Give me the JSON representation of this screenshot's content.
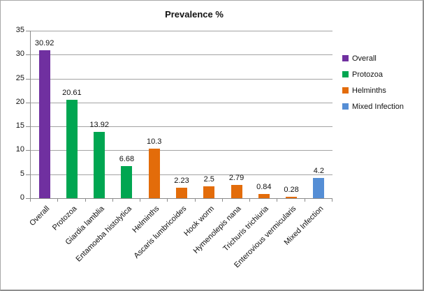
{
  "chart_data": {
    "type": "bar",
    "title": "Prevalence %",
    "categories": [
      "Overall",
      "Protozoa",
      "Giardia lamblia",
      "Entamoeba histolytica",
      "Helminths",
      "Ascaris lumbricoides",
      "Hook worm",
      "Hymenolepis nana",
      "Trichuris trichiuria",
      "Enterovious vermicularis",
      "Mixed Infection"
    ],
    "values": [
      30.92,
      20.61,
      13.92,
      6.68,
      10.3,
      2.23,
      2.5,
      2.79,
      0.84,
      0.28,
      4.2
    ],
    "value_labels": [
      "30.92",
      "20.61",
      "13.92",
      "6.68",
      "10.3",
      "2.23",
      "2.5",
      "2.79",
      "0.84",
      "0.28",
      "4.2"
    ],
    "groups": [
      "Overall",
      "Protozoa",
      "Protozoa",
      "Protozoa",
      "Helminths",
      "Helminths",
      "Helminths",
      "Helminths",
      "Helminths",
      "Helminths",
      "Mixed Infection"
    ],
    "group_colors": {
      "Overall": "#7030A0",
      "Protozoa": "#00A651",
      "Helminths": "#E36C0A",
      "Mixed Infection": "#558ED5"
    },
    "legend": [
      {
        "label": "Overall",
        "color": "#7030A0"
      },
      {
        "label": "Protozoa",
        "color": "#00A651"
      },
      {
        "label": "Helminths",
        "color": "#E36C0A"
      },
      {
        "label": "Mixed Infection",
        "color": "#558ED5"
      }
    ],
    "xlabel": "",
    "ylabel": "",
    "ylim": [
      0,
      35
    ],
    "ytick_step": 5,
    "yticks": [
      0,
      5,
      10,
      15,
      20,
      25,
      30,
      35
    ],
    "grid": true,
    "legend_position": "right",
    "axis_color": "#8C8C8C",
    "grid_color": "#A3A3A3"
  }
}
